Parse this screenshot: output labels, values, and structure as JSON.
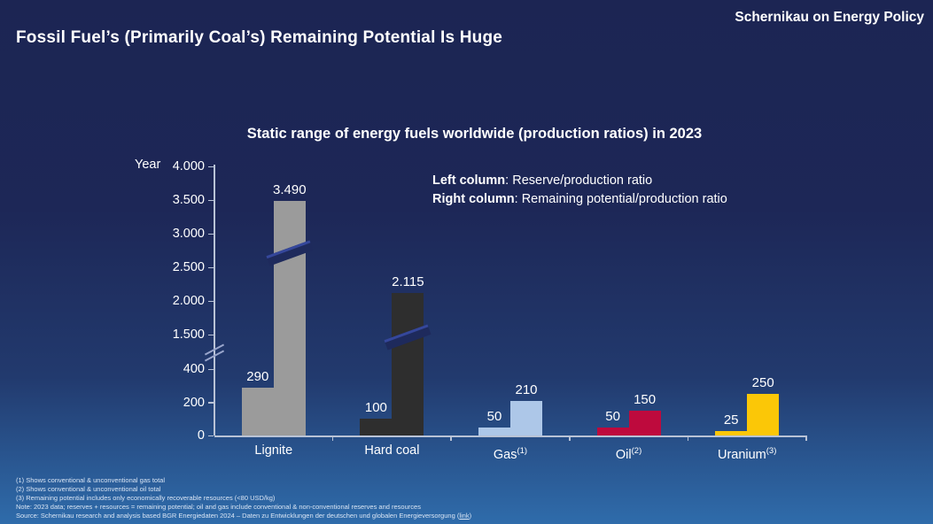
{
  "header": {
    "title": "Fossil Fuel’s (Primarily Coal’s) Remaining Potential Is Huge",
    "brand": "Schernikau on Energy Policy"
  },
  "legend": {
    "left_label": "Left column",
    "left_desc": ": Reserve/production ratio",
    "right_label": "Right column",
    "right_desc": ": Remaining potential/production ratio"
  },
  "chart_data": {
    "type": "bar",
    "title": "Static range of energy fuels worldwide (production ratios) in 2023",
    "ylabel": "Year",
    "xlabel": "",
    "ylim": [
      0,
      4000
    ],
    "grid": false,
    "legend_position": "top-right",
    "axis_break_between": [
      400,
      1500
    ],
    "categories": [
      "Lignite",
      "Hard coal",
      "Gas",
      "Oil",
      "Uranium"
    ],
    "category_superscripts": [
      "",
      "",
      "(1)",
      "(2)",
      "(3)"
    ],
    "y_ticks": [
      {
        "label": "4.000",
        "value": 4000
      },
      {
        "label": "3.500",
        "value": 3500
      },
      {
        "label": "3.000",
        "value": 3000
      },
      {
        "label": "2.500",
        "value": 2500
      },
      {
        "label": "2.000",
        "value": 2000
      },
      {
        "label": "1.500",
        "value": 1500
      },
      {
        "label": "400",
        "value": 400
      },
      {
        "label": "200",
        "value": 200
      },
      {
        "label": "0",
        "value": 0
      }
    ],
    "series": [
      {
        "name": "Reserve/production ratio",
        "values": [
          290,
          100,
          50,
          50,
          25
        ],
        "labels": [
          "290",
          "100",
          "50",
          "50",
          "25"
        ]
      },
      {
        "name": "Remaining potential/production ratio",
        "values": [
          3490,
          2115,
          210,
          150,
          250
        ],
        "labels": [
          "3.490",
          "2.115",
          "210",
          "150",
          "250"
        ]
      }
    ],
    "bar_colors": [
      "#9b9b9b",
      "#2e2e2e",
      "#adc7e8",
      "#be0a3d",
      "#fbc707"
    ]
  },
  "footnotes": {
    "lines": [
      "(1) Shows conventional & unconventional gas total",
      "(2) Shows conventional & unconventional oil total",
      "(3) Remaining potential includes only economically recoverable resources (<80 USD/kg)",
      "Note: 2023 data; reserves + resources = remaining potential; oil and gas include conventional & non-conventional reserves and resources"
    ],
    "source_prefix": "Source: Schernikau research and analysis based BGR Energiedaten 2024 – Daten zu Entwicklungen der deutschen und globalen Energieversorgung (",
    "source_link_label": "link",
    "source_suffix": ")"
  },
  "colors": {
    "background_top": "#1c2553",
    "background_bottom": "#2f6cab",
    "text": "#ffffff",
    "axis": "#b9c3d6",
    "footnote_text": "#d9e5f5",
    "bar_break_fill": "#1e2a5c",
    "bar_break_edge": "#35479b"
  }
}
